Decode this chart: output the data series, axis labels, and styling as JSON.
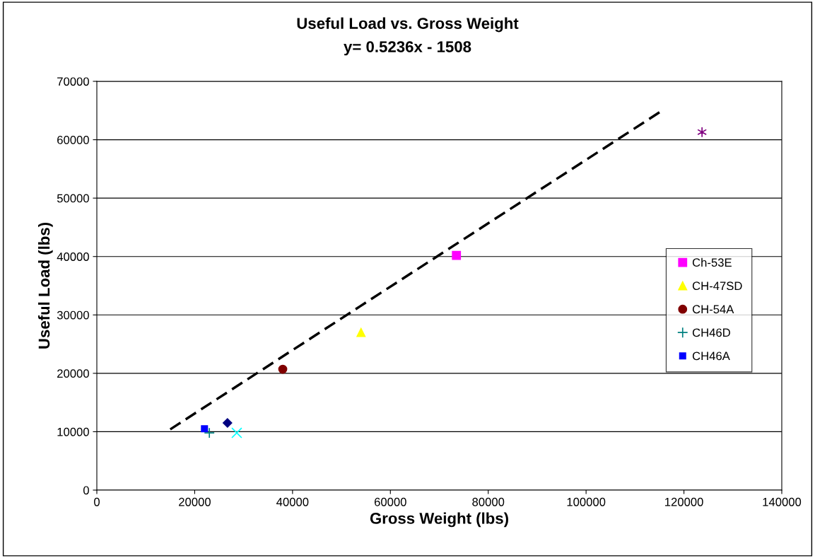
{
  "chart_data": {
    "type": "scatter",
    "title": "Useful Load vs. Gross Weight",
    "subtitle": "y= 0.5236x - 1508",
    "xlabel": "Gross Weight (lbs)",
    "ylabel": "Useful Load (lbs)",
    "xlim": [
      0,
      140000
    ],
    "xticks": [
      0,
      20000,
      40000,
      60000,
      80000,
      100000,
      120000,
      140000
    ],
    "ylim": [
      0,
      70000
    ],
    "yticks": [
      0,
      10000,
      20000,
      30000,
      40000,
      50000,
      60000,
      70000
    ],
    "grid": "y",
    "legend": "right",
    "series": [
      {
        "x": [
          15000,
          115000
        ],
        "values": [
          10400,
          64700
        ],
        "type": "line",
        "color": "#000000",
        "line_style": "dashed",
        "marker": "none"
      },
      {
        "x": [
          26700
        ],
        "values": [
          11500
        ],
        "color": "#000080",
        "marker": "diamond"
      },
      {
        "name": "Ch-53E",
        "x": [
          73500
        ],
        "values": [
          40200
        ],
        "color": "#ff00ff",
        "marker": "square"
      },
      {
        "name": "CH-47SD",
        "x": [
          54000
        ],
        "values": [
          27000
        ],
        "color": "#ffff00",
        "marker": "triangle"
      },
      {
        "x": [
          28600
        ],
        "values": [
          9800
        ],
        "color": "#00ffff",
        "marker": "x"
      },
      {
        "x": [
          123700
        ],
        "values": [
          61300
        ],
        "color": "#800080",
        "marker": "cross"
      },
      {
        "name": "CH-54A",
        "x": [
          38000
        ],
        "values": [
          20700
        ],
        "color": "#800000",
        "marker": "circle"
      },
      {
        "name": "CH46D",
        "x": [
          23000
        ],
        "values": [
          9800
        ],
        "color": "#008080",
        "marker": "plus"
      },
      {
        "name": "CH46A",
        "x": [
          22000
        ],
        "values": [
          10500
        ],
        "color": "#0000ff",
        "marker": "square"
      }
    ]
  }
}
